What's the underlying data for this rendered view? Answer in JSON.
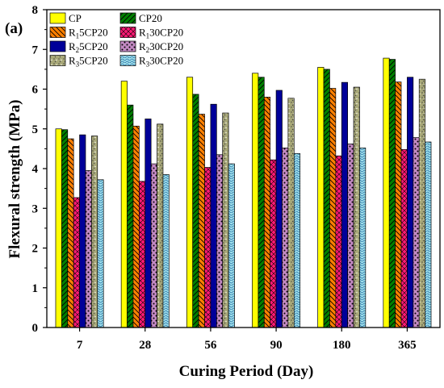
{
  "panel_label": "(a)",
  "chart_data": {
    "type": "bar",
    "xlabel": "Curing Period (Day)",
    "ylabel": "Flexural strength (MPa)",
    "ylim": [
      0,
      8
    ],
    "yticks": [
      0,
      1,
      2,
      3,
      4,
      5,
      6,
      7,
      8
    ],
    "grid": false,
    "legend_position": "top-left",
    "categories": [
      "7",
      "28",
      "56",
      "90",
      "180",
      "365"
    ],
    "series": [
      {
        "name": "CP",
        "legend_base": "CP",
        "legend_sub": "",
        "legend_suffix": "",
        "values": [
          5.0,
          6.2,
          6.3,
          6.4,
          6.55,
          6.78
        ],
        "color": "#ffff00",
        "pattern": "solid"
      },
      {
        "name": "CP20",
        "legend_base": "CP20",
        "legend_sub": "",
        "legend_suffix": "",
        "values": [
          4.98,
          5.6,
          5.87,
          6.3,
          6.5,
          6.75
        ],
        "color": "#008000",
        "pattern": "diag-up"
      },
      {
        "name": "R15CP20",
        "legend_base": "R",
        "legend_sub": "1",
        "legend_suffix": "5CP20",
        "values": [
          4.75,
          5.07,
          5.37,
          5.8,
          6.02,
          6.18
        ],
        "color": "#ff8000",
        "pattern": "diag-down"
      },
      {
        "name": "R130CP20",
        "legend_base": "R",
        "legend_sub": "1",
        "legend_suffix": "30CP20",
        "values": [
          3.27,
          3.68,
          4.03,
          4.22,
          4.32,
          4.48
        ],
        "color": "#ff1a75",
        "pattern": "cross"
      },
      {
        "name": "R25CP20",
        "legend_base": "R",
        "legend_sub": "2",
        "legend_suffix": "5CP20",
        "values": [
          4.85,
          5.25,
          5.62,
          5.97,
          6.17,
          6.3
        ],
        "color": "#000099",
        "pattern": "solid"
      },
      {
        "name": "R230CP20",
        "legend_base": "R",
        "legend_sub": "2",
        "legend_suffix": "30CP20",
        "values": [
          3.95,
          4.12,
          4.35,
          4.52,
          4.62,
          4.78
        ],
        "color": "#c389c3",
        "pattern": "dots"
      },
      {
        "name": "R35CP20",
        "legend_base": "R",
        "legend_sub": "3",
        "legend_suffix": "5CP20",
        "values": [
          4.82,
          5.12,
          5.4,
          5.77,
          6.05,
          6.25
        ],
        "color": "#a8a878",
        "pattern": "grain"
      },
      {
        "name": "R330CP20",
        "legend_base": "R",
        "legend_sub": "3",
        "legend_suffix": "30CP20",
        "values": [
          3.72,
          3.85,
          4.12,
          4.38,
          4.52,
          4.67
        ],
        "color": "#9fe0ea",
        "pattern": "wave"
      }
    ]
  }
}
